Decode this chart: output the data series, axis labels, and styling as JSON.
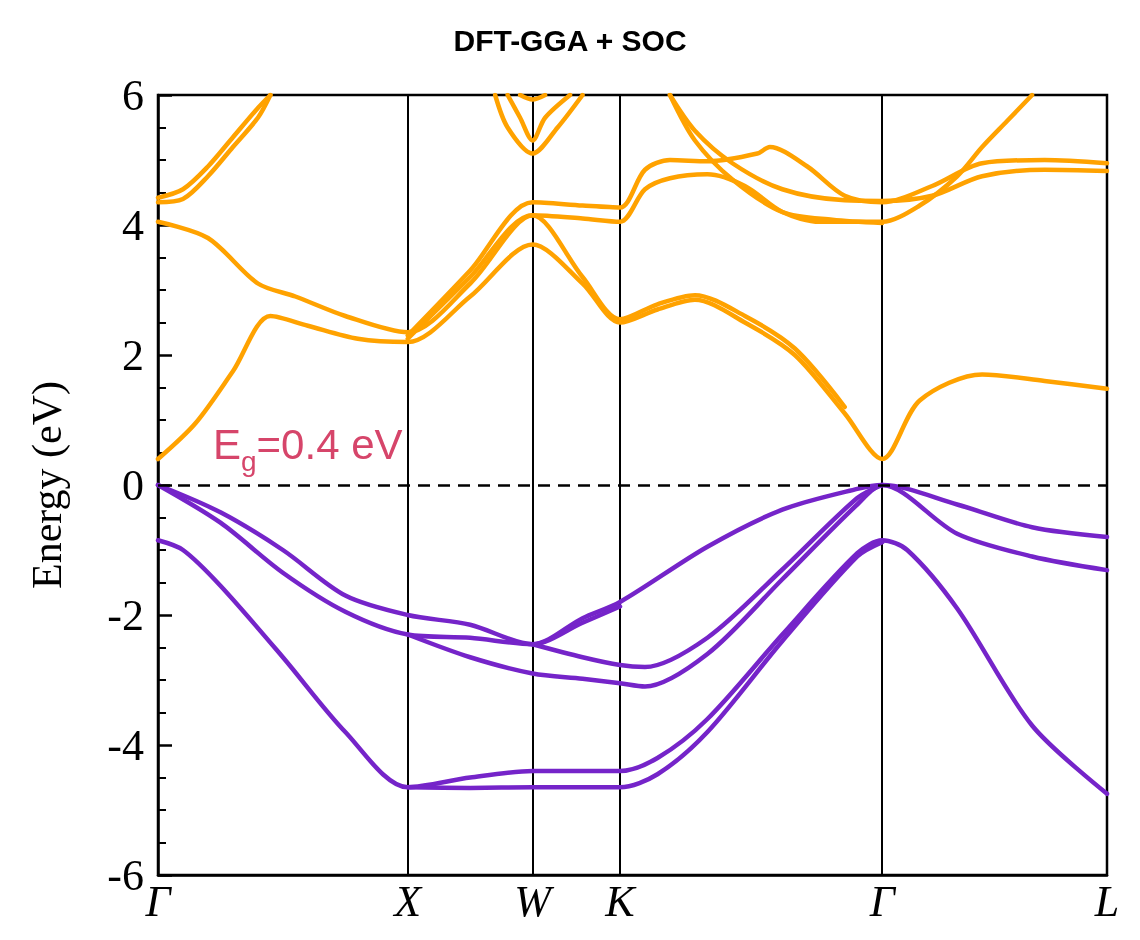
{
  "chart_data": {
    "type": "line",
    "title": "DFT-GGA + SOC",
    "ylabel": "Energy (eV)",
    "categories": [
      "Γ",
      null,
      null,
      null,
      null,
      null,
      null,
      null,
      null,
      null,
      null,
      null,
      null,
      null,
      null,
      null,
      null,
      null,
      null,
      null,
      "X",
      null,
      null,
      null,
      null,
      null,
      null,
      null,
      null,
      null,
      "W",
      null,
      null,
      null,
      null,
      null,
      null,
      "K",
      null,
      null,
      null,
      null,
      null,
      null,
      null,
      null,
      null,
      null,
      null,
      null,
      null,
      null,
      null,
      null,
      null,
      null,
      null,
      null,
      "Γ",
      null,
      null,
      null,
      null,
      null,
      null,
      null,
      null,
      null,
      null,
      null,
      null,
      null,
      null,
      null,
      null,
      null,
      "L"
    ],
    "ylim": [
      -6,
      6
    ],
    "yticks": [
      -6,
      -4,
      -2,
      0,
      2,
      4,
      6
    ],
    "grid": "x",
    "marker": "none",
    "line_style": "solid",
    "ref_lines": [
      {
        "axis": "y",
        "value": 0,
        "color": "#000000",
        "line_style": "dashed"
      }
    ],
    "annotations": [
      "E$_{g}$=0.4 eV"
    ],
    "series": [
      {
        "color": "#7524c9",
        "values": [
          0,
          null,
          null,
          null,
          null,
          -0.42,
          null,
          null,
          null,
          null,
          -1.0,
          null,
          null,
          null,
          null,
          -1.7,
          null,
          null,
          null,
          null,
          -2.0,
          null,
          null,
          null,
          null,
          -2.15,
          null,
          null,
          null,
          null,
          -2.45,
          null,
          null,
          null,
          -2.05,
          null,
          null,
          -1.8,
          null,
          null,
          null,
          null,
          null,
          null,
          -0.95,
          null,
          null,
          null,
          null,
          null,
          -0.38,
          null,
          null,
          null,
          null,
          null,
          -0.06,
          null,
          0,
          null,
          null,
          null,
          null,
          null,
          -0.3,
          null,
          null,
          null,
          null,
          null,
          -0.65,
          null,
          null,
          null,
          null,
          null,
          -0.8
        ]
      },
      {
        "color": "#7524c9",
        "values": [
          0,
          null,
          null,
          null,
          null,
          -0.58,
          null,
          null,
          null,
          null,
          -1.35,
          null,
          null,
          null,
          null,
          -1.95,
          null,
          null,
          null,
          null,
          -2.3,
          null,
          null,
          null,
          null,
          -2.35,
          null,
          null,
          null,
          null,
          -2.45,
          null,
          null,
          null,
          -2.12,
          null,
          null,
          -1.87,
          null,
          null,
          null,
          null,
          null,
          null,
          null,
          null,
          null,
          null,
          null,
          null,
          null,
          null,
          null,
          null,
          null,
          null,
          null,
          null,
          null,
          null,
          null,
          null,
          null,
          null,
          null,
          null,
          null,
          null,
          null,
          null,
          null,
          null,
          null,
          null,
          null,
          null,
          null
        ]
      },
      {
        "color": "#7524c9",
        "values": [
          null,
          null,
          null,
          null,
          null,
          null,
          null,
          null,
          null,
          null,
          null,
          null,
          null,
          null,
          null,
          null,
          null,
          null,
          null,
          null,
          -2.3,
          null,
          null,
          null,
          null,
          -2.65,
          null,
          null,
          null,
          null,
          -2.9,
          null,
          null,
          null,
          -2.98,
          null,
          null,
          -3.05,
          null,
          -3.1,
          null,
          null,
          null,
          null,
          -2.6,
          null,
          null,
          null,
          null,
          null,
          -1.45,
          null,
          null,
          null,
          null,
          null,
          -0.3,
          null,
          0,
          null,
          null,
          null,
          null,
          null,
          -0.75,
          null,
          null,
          null,
          null,
          null,
          -1.1,
          null,
          null,
          null,
          null,
          null,
          -1.31
        ]
      },
      {
        "color": "#7524c9",
        "values": [
          null,
          null,
          null,
          null,
          null,
          null,
          null,
          null,
          null,
          null,
          null,
          null,
          null,
          null,
          null,
          null,
          null,
          null,
          null,
          null,
          null,
          null,
          null,
          null,
          null,
          null,
          null,
          null,
          null,
          null,
          -2.45,
          null,
          null,
          null,
          -2.65,
          null,
          null,
          -2.77,
          null,
          -2.8,
          null,
          null,
          null,
          null,
          -2.35,
          null,
          null,
          null,
          null,
          null,
          -1.3,
          null,
          null,
          null,
          null,
          null,
          -0.2,
          null,
          0,
          null,
          null,
          null,
          null,
          null,
          null,
          null,
          null,
          null,
          null,
          null,
          null,
          null,
          null,
          null,
          null,
          null,
          null
        ]
      },
      {
        "color": "#7524c9",
        "values": [
          -0.85,
          null,
          -1.0,
          null,
          null,
          -1.55,
          null,
          null,
          null,
          null,
          -2.65,
          null,
          null,
          null,
          null,
          -3.8,
          null,
          null,
          null,
          null,
          -4.65,
          null,
          null,
          null,
          null,
          -4.5,
          null,
          null,
          null,
          null,
          -4.4,
          null,
          null,
          null,
          null,
          null,
          null,
          -4.4,
          null,
          null,
          -4.2,
          null,
          null,
          null,
          -3.6,
          null,
          null,
          null,
          null,
          null,
          -2.3,
          null,
          null,
          null,
          null,
          null,
          -1.05,
          null,
          -0.85,
          null,
          -1.0,
          null,
          null,
          null,
          -1.9,
          null,
          null,
          null,
          null,
          null,
          -3.7,
          null,
          null,
          null,
          null,
          null,
          -4.75
        ]
      },
      {
        "color": "#7524c9",
        "values": [
          null,
          null,
          null,
          null,
          null,
          null,
          null,
          null,
          null,
          null,
          null,
          null,
          null,
          null,
          null,
          null,
          null,
          null,
          null,
          null,
          -4.65,
          null,
          null,
          null,
          null,
          -4.66,
          null,
          null,
          null,
          null,
          -4.65,
          null,
          null,
          null,
          null,
          null,
          null,
          -4.65,
          null,
          null,
          -4.45,
          null,
          null,
          null,
          -3.8,
          null,
          null,
          null,
          null,
          null,
          -2.4,
          null,
          null,
          null,
          null,
          null,
          -1.1,
          null,
          -0.88,
          null,
          null,
          null,
          null,
          null,
          null,
          null,
          null,
          null,
          null,
          null,
          null,
          null,
          null,
          null,
          null,
          null,
          null
        ]
      },
      {
        "color": "#ffa200",
        "values": [
          0.4,
          null,
          null,
          0.95,
          null,
          null,
          1.75,
          null,
          null,
          2.6,
          null,
          null,
          2.45,
          null,
          null,
          null,
          2.25,
          null,
          null,
          null,
          2.2,
          null,
          null,
          null,
          null,
          2.9,
          null,
          null,
          null,
          null,
          3.7,
          null,
          null,
          null,
          3.1,
          null,
          null,
          2.5,
          null,
          null,
          2.7,
          null,
          null,
          2.85,
          null,
          null,
          null,
          2.5,
          null,
          null,
          null,
          2.0,
          null,
          null,
          null,
          1.1,
          null,
          null,
          0.4,
          null,
          null,
          1.3,
          null,
          null,
          null,
          null,
          1.7,
          null,
          null,
          null,
          null,
          1.6,
          null,
          null,
          null,
          null,
          1.48
        ]
      },
      {
        "color": "#ffa200",
        "values": [
          4.05,
          null,
          null,
          null,
          3.8,
          null,
          null,
          null,
          3.1,
          null,
          null,
          2.9,
          null,
          null,
          null,
          2.6,
          null,
          null,
          null,
          null,
          2.35,
          null,
          null,
          null,
          null,
          3.1,
          null,
          null,
          null,
          null,
          4.15,
          null,
          null,
          null,
          3.2,
          null,
          null,
          2.55,
          null,
          null,
          2.78,
          null,
          null,
          2.92,
          null,
          null,
          null,
          2.6,
          null,
          null,
          null,
          2.1,
          null,
          null,
          null,
          1.2,
          null,
          null,
          null,
          null,
          null,
          null,
          null,
          null,
          null,
          null,
          null,
          null,
          null,
          null,
          null,
          null,
          null,
          null,
          null,
          null,
          null
        ]
      },
      {
        "color": "#ffa200",
        "values": [
          4.35,
          null,
          4.4,
          null,
          4.75,
          null,
          5.2,
          null,
          5.65,
          6.0,
          null,
          null,
          null,
          null,
          null,
          null,
          null,
          null,
          null,
          null,
          null,
          null,
          null,
          null,
          null,
          null,
          null,
          null,
          null,
          null,
          null,
          null,
          null,
          null,
          null,
          null,
          null,
          null,
          null,
          null,
          null,
          null,
          null,
          null,
          null,
          null,
          null,
          null,
          null,
          null,
          null,
          null,
          null,
          null,
          null,
          null,
          null,
          null,
          null,
          null,
          null,
          null,
          null,
          null,
          null,
          null,
          null,
          null,
          null,
          null,
          null,
          null,
          null,
          null,
          null,
          null,
          null
        ]
      },
      {
        "color": "#ffa200",
        "values": [
          4.42,
          null,
          4.55,
          null,
          4.9,
          null,
          5.35,
          null,
          5.8,
          6.0,
          null,
          null,
          null,
          null,
          null,
          null,
          null,
          null,
          null,
          null,
          null,
          null,
          null,
          null,
          null,
          null,
          null,
          null,
          null,
          null,
          null,
          null,
          null,
          null,
          null,
          null,
          null,
          null,
          null,
          null,
          null,
          null,
          null,
          null,
          null,
          null,
          null,
          null,
          null,
          null,
          null,
          null,
          null,
          null,
          null,
          null,
          null,
          null,
          null,
          null,
          null,
          null,
          null,
          null,
          null,
          null,
          null,
          null,
          null,
          null,
          null,
          null,
          null,
          null,
          null,
          null,
          null
        ]
      },
      {
        "color": "#ffa200",
        "values": [
          null,
          null,
          null,
          null,
          null,
          null,
          null,
          null,
          null,
          null,
          null,
          null,
          null,
          null,
          null,
          null,
          null,
          null,
          null,
          null,
          2.3,
          null,
          null,
          null,
          null,
          3.3,
          null,
          null,
          null,
          null,
          4.35,
          null,
          null,
          null,
          4.3,
          null,
          null,
          4.27,
          null,
          4.85,
          null,
          5.0,
          null,
          null,
          4.98,
          null,
          null,
          null,
          5.1,
          5.2,
          null,
          null,
          4.9,
          null,
          null,
          4.45,
          null,
          null,
          4.35,
          null,
          null,
          null,
          4.6,
          null,
          null,
          null,
          4.95,
          null,
          null,
          null,
          null,
          5.0,
          null,
          null,
          null,
          null,
          4.95
        ]
      },
      {
        "color": "#ffa200",
        "values": [
          null,
          null,
          null,
          null,
          null,
          null,
          null,
          null,
          null,
          null,
          null,
          null,
          null,
          null,
          null,
          null,
          null,
          null,
          null,
          null,
          2.25,
          null,
          null,
          null,
          null,
          3.2,
          null,
          null,
          null,
          null,
          4.15,
          null,
          null,
          null,
          4.1,
          null,
          null,
          4.05,
          null,
          4.55,
          null,
          4.72,
          null,
          null,
          4.78,
          null,
          null,
          4.6,
          null,
          null,
          4.2,
          null,
          null,
          4.05,
          null,
          null,
          null,
          null,
          4.05,
          null,
          null,
          4.3,
          null,
          null,
          4.75,
          null,
          5.2,
          null,
          5.6,
          null,
          6.0,
          null,
          null,
          null,
          null,
          null,
          null
        ]
      },
      {
        "color": "#ffa200",
        "values": [
          null,
          null,
          null,
          null,
          null,
          null,
          null,
          null,
          null,
          null,
          null,
          null,
          null,
          null,
          null,
          null,
          null,
          null,
          null,
          null,
          null,
          null,
          null,
          null,
          null,
          null,
          null,
          6.0,
          5.5,
          null,
          5.1,
          null,
          5.5,
          null,
          6.0,
          null,
          null,
          null,
          null,
          null,
          null,
          null,
          null,
          null,
          null,
          null,
          null,
          null,
          null,
          null,
          null,
          null,
          null,
          null,
          null,
          null,
          null,
          null,
          null,
          null,
          null,
          null,
          null,
          null,
          null,
          null,
          null,
          null,
          null,
          null,
          null,
          null,
          null,
          null,
          null,
          null,
          null
        ]
      },
      {
        "color": "#ffa200",
        "values": [
          null,
          null,
          null,
          null,
          null,
          null,
          null,
          null,
          null,
          null,
          null,
          null,
          null,
          null,
          null,
          null,
          null,
          null,
          null,
          null,
          null,
          null,
          null,
          null,
          null,
          null,
          null,
          null,
          6.0,
          5.65,
          5.3,
          5.65,
          null,
          6.0,
          null,
          null,
          null,
          null,
          null,
          null,
          null,
          null,
          null,
          null,
          null,
          null,
          null,
          null,
          null,
          null,
          null,
          null,
          null,
          null,
          null,
          null,
          null,
          null,
          null,
          null,
          null,
          null,
          null,
          null,
          null,
          null,
          null,
          null,
          null,
          null,
          null,
          null,
          null,
          null,
          null,
          null,
          null
        ]
      },
      {
        "color": "#ffa200",
        "values": [
          null,
          null,
          null,
          null,
          null,
          null,
          null,
          null,
          null,
          null,
          null,
          null,
          null,
          null,
          null,
          null,
          null,
          null,
          null,
          null,
          null,
          null,
          null,
          null,
          null,
          null,
          null,
          null,
          null,
          6.0,
          5.93,
          6.0,
          null,
          null,
          null,
          null,
          null,
          null,
          null,
          null,
          null,
          null,
          null,
          null,
          null,
          null,
          null,
          null,
          null,
          null,
          null,
          null,
          null,
          null,
          null,
          null,
          null,
          null,
          null,
          null,
          null,
          null,
          null,
          null,
          null,
          null,
          null,
          null,
          null,
          null,
          null,
          null,
          null,
          null,
          null,
          null,
          null
        ]
      },
      {
        "color": "#ffa200",
        "values": [
          null,
          null,
          null,
          null,
          null,
          null,
          null,
          null,
          null,
          null,
          null,
          null,
          null,
          null,
          null,
          null,
          null,
          null,
          null,
          null,
          null,
          null,
          null,
          null,
          null,
          null,
          null,
          null,
          null,
          null,
          null,
          null,
          null,
          null,
          null,
          null,
          null,
          null,
          null,
          null,
          null,
          6.0,
          null,
          5.45,
          null,
          null,
          4.95,
          null,
          null,
          null,
          4.55,
          null,
          null,
          null,
          null,
          4.38,
          null,
          null,
          4.37,
          null,
          null,
          null,
          4.45,
          null,
          null,
          null,
          4.75,
          null,
          null,
          null,
          null,
          4.85,
          null,
          null,
          null,
          null,
          4.83
        ]
      },
      {
        "color": "#ffa200",
        "values": [
          null,
          null,
          null,
          null,
          null,
          null,
          null,
          null,
          null,
          null,
          null,
          null,
          null,
          null,
          null,
          null,
          null,
          null,
          null,
          null,
          null,
          null,
          null,
          null,
          null,
          null,
          null,
          null,
          null,
          null,
          null,
          null,
          null,
          null,
          null,
          null,
          null,
          null,
          null,
          null,
          null,
          6.0,
          null,
          5.3,
          null,
          null,
          4.7,
          null,
          null,
          null,
          4.2,
          null,
          null,
          null,
          4.08,
          null,
          null,
          null,
          4.03,
          null,
          null,
          null,
          null,
          null,
          null,
          null,
          null,
          null,
          null,
          null,
          null,
          null,
          null,
          null,
          null,
          null,
          null
        ]
      }
    ]
  }
}
